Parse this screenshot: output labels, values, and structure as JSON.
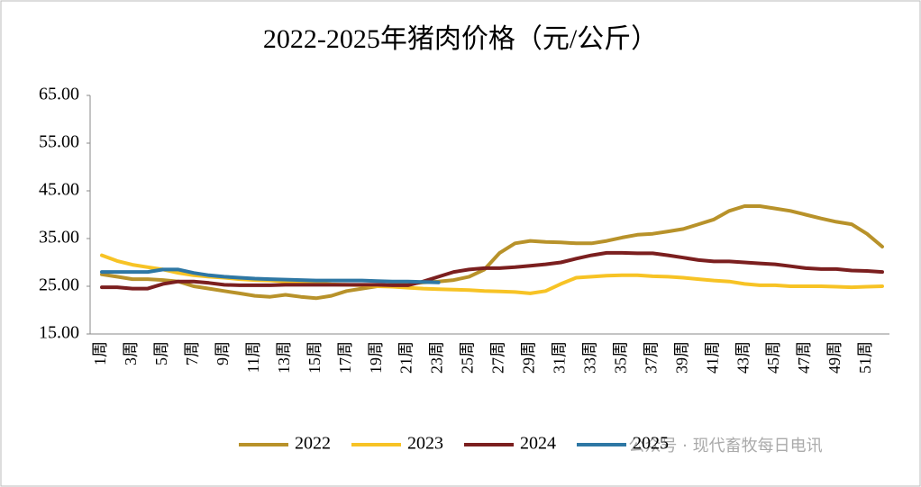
{
  "chart_data": {
    "type": "line",
    "title": "2022-2025年猪肉价格（元/公斤）",
    "watermark": "公众号 · 现代畜牧每日电讯",
    "categories": [
      "1周",
      null,
      "3周",
      null,
      "5周",
      null,
      "7周",
      null,
      "9周",
      null,
      "11周",
      null,
      "13周",
      null,
      "15周",
      null,
      "17周",
      null,
      "19周",
      null,
      "21周",
      null,
      "23周",
      null,
      "25周",
      null,
      "27周",
      null,
      "29周",
      null,
      "31周",
      null,
      "33周",
      null,
      "35周",
      null,
      "37周",
      null,
      "39周",
      null,
      "41周",
      null,
      "43周",
      null,
      "45周",
      null,
      "47周",
      null,
      "49周",
      null,
      "51周",
      null
    ],
    "ylim": [
      15,
      65
    ],
    "yticks": [
      {
        "value": 15,
        "label": "15.00"
      },
      {
        "value": 25,
        "label": "25.00"
      },
      {
        "value": 35,
        "label": "35.00"
      },
      {
        "value": 45,
        "label": "45.00"
      },
      {
        "value": 55,
        "label": "55.00"
      },
      {
        "value": 65,
        "label": "65.00"
      }
    ],
    "grid": false,
    "legend": "bottom",
    "series": [
      {
        "name": "2022",
        "color": "#b8922a",
        "values": [
          27.5,
          27,
          26.5,
          26.5,
          26.3,
          26,
          25,
          24.5,
          24,
          23.5,
          23,
          22.8,
          23.2,
          22.8,
          22.5,
          23,
          24,
          24.5,
          25,
          25.3,
          25.5,
          25.8,
          26,
          26.3,
          27,
          28.5,
          32,
          34,
          34.5,
          34.3,
          34.2,
          34,
          34,
          34.5,
          35.2,
          35.8,
          36,
          36.5,
          37,
          38,
          39,
          40.8,
          41.8,
          41.8,
          41.3,
          40.8,
          40,
          39.2,
          38.5,
          38,
          36,
          33.3
        ]
      },
      {
        "name": "2023",
        "color": "#f7c325",
        "values": [
          31.5,
          30.3,
          29.5,
          29,
          28.5,
          27.8,
          27.3,
          27,
          26.8,
          26.5,
          26.3,
          26.2,
          26,
          25.8,
          25.6,
          25.4,
          25.3,
          25.2,
          25,
          24.9,
          24.7,
          24.5,
          24.4,
          24.3,
          24.2,
          24,
          23.9,
          23.8,
          23.5,
          24,
          25.5,
          26.8,
          27,
          27.2,
          27.3,
          27.3,
          27.1,
          27,
          26.8,
          26.5,
          26.2,
          26,
          25.5,
          25.2,
          25.2,
          25,
          25,
          25,
          24.9,
          24.8,
          24.9,
          25
        ]
      },
      {
        "name": "2024",
        "color": "#7b1f1f",
        "values": [
          24.8,
          24.8,
          24.5,
          24.5,
          25.5,
          26,
          26,
          25.7,
          25.3,
          25.2,
          25.2,
          25.2,
          25.3,
          25.3,
          25.3,
          25.3,
          25.3,
          25.3,
          25.3,
          25.2,
          25.2,
          26,
          27,
          28,
          28.5,
          28.8,
          28.8,
          29,
          29.3,
          29.6,
          30,
          30.8,
          31.5,
          32,
          32,
          31.9,
          31.9,
          31.5,
          31,
          30.5,
          30.2,
          30.2,
          30,
          29.8,
          29.6,
          29.2,
          28.8,
          28.6,
          28.6,
          28.3,
          28.2,
          28
        ]
      },
      {
        "name": "2025",
        "color": "#2e77a4",
        "values": [
          28,
          28,
          28,
          28,
          28.5,
          28.5,
          27.8,
          27.3,
          27,
          26.8,
          26.6,
          26.5,
          26.4,
          26.3,
          26.2,
          26.2,
          26.2,
          26.2,
          26.1,
          26,
          26,
          25.9,
          25.8,
          null,
          null,
          null,
          null,
          null,
          null,
          null,
          null,
          null,
          null,
          null,
          null,
          null,
          null,
          null,
          null,
          null,
          null,
          null,
          null,
          null,
          null,
          null,
          null,
          null,
          null,
          null,
          null,
          null
        ]
      }
    ]
  }
}
